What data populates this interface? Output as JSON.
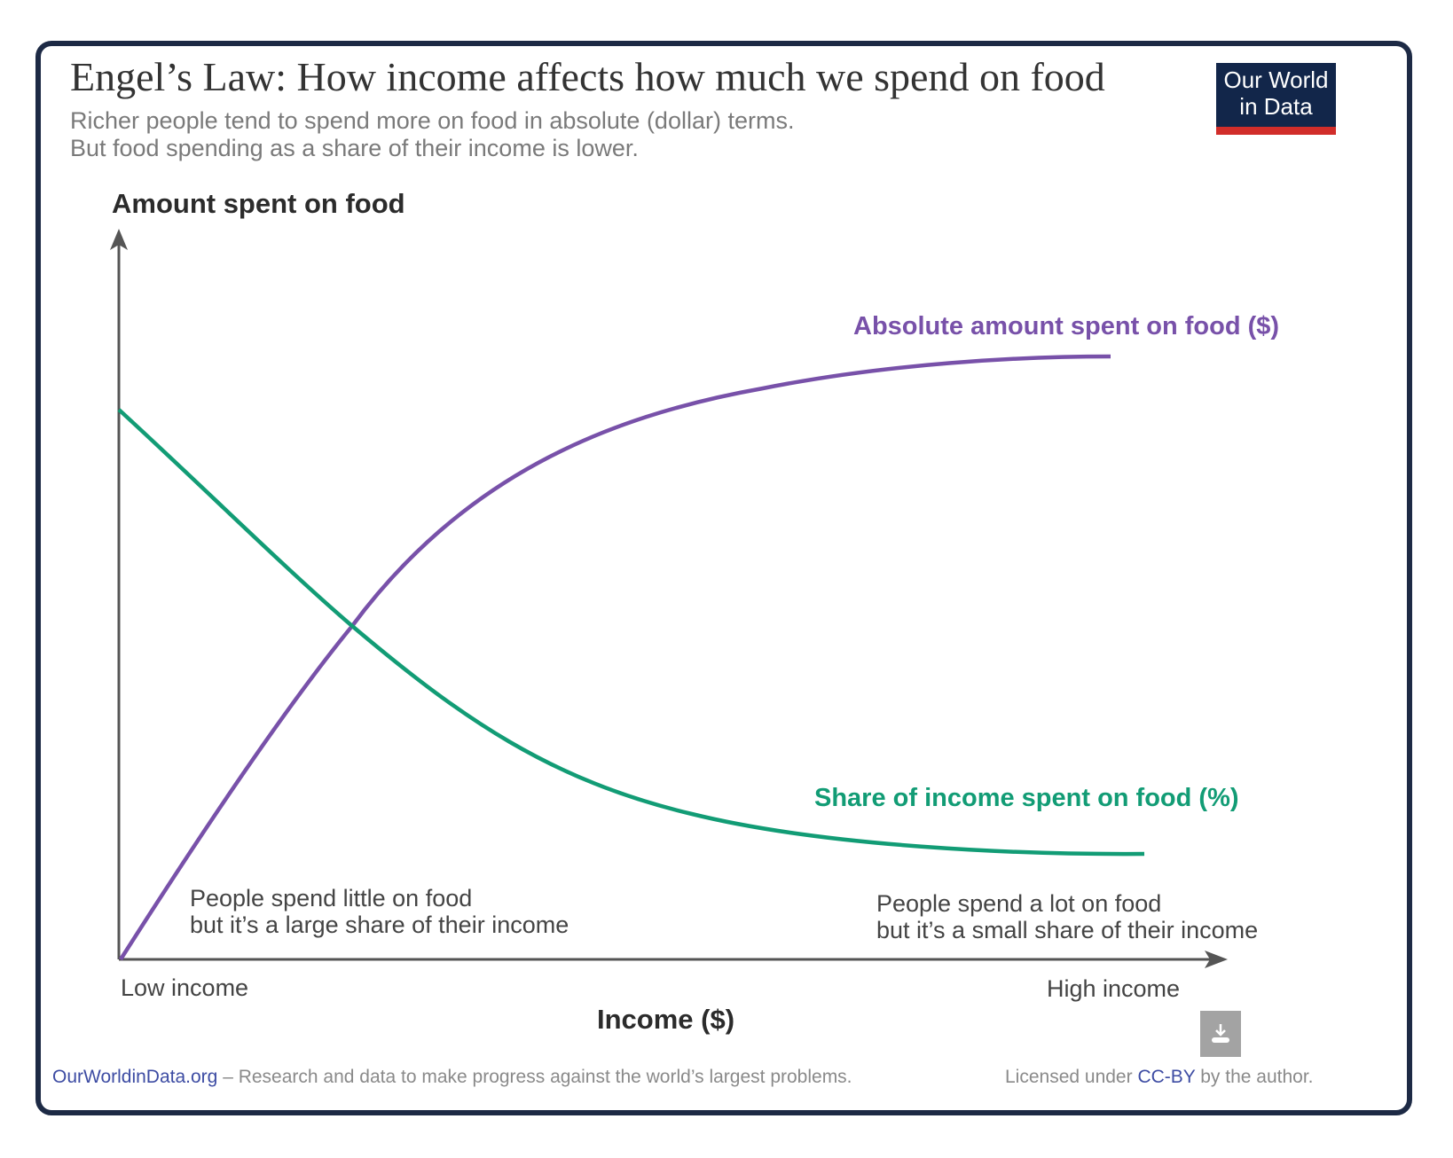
{
  "header": {
    "title": "Engel’s Law: How income affects how much we spend on food",
    "subtitle_lines": [
      "Richer people tend to spend more on food in absolute (dollar) terms.",
      "But food spending as a share of their income is lower."
    ],
    "logo": {
      "line1": "Our World",
      "line2": "in Data"
    }
  },
  "diagram": {
    "y_axis_label": "Amount spent on food",
    "x_axis_label": "Income ($)",
    "x_low": "Low income",
    "x_high": "High income",
    "curves": [
      {
        "label": "Absolute amount spent on food ($)",
        "color": "#7851a9"
      },
      {
        "label": "Share of income spent on food (%)",
        "color": "#129c75"
      }
    ],
    "annotation_low": [
      "People spend little on food",
      "but it’s a large share of their income"
    ],
    "annotation_high": [
      "People spend a lot on food",
      "but it’s a small share of their income"
    ]
  },
  "footer": {
    "site": "OurWorldinData.org",
    "tagline": " – Research and data to make progress against the world’s largest problems.",
    "license_prefix": "Licensed under ",
    "license_link": "CC-BY",
    "license_suffix": " by the author."
  },
  "colors": {
    "frame": "#1d2a45",
    "logo_bg": "#12264a",
    "logo_bar": "#d12d2a",
    "link": "#3d4ca3"
  },
  "download_icon": "download-icon"
}
